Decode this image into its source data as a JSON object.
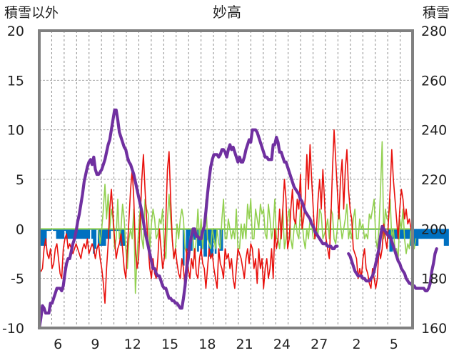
{
  "chart_data": {
    "type": "line",
    "title": "妙高",
    "left_axis_label": "積雪以外",
    "right_axis_label": "積雪",
    "ylim_left": [
      -10,
      20
    ],
    "ylim_right": [
      160,
      280
    ],
    "yticks_left": [
      -10,
      -5,
      0,
      5,
      10,
      15,
      20
    ],
    "yticks_right": [
      160,
      180,
      200,
      220,
      240,
      260,
      280
    ],
    "xticks": [
      "6",
      "9",
      "12",
      "15",
      "18",
      "21",
      "24",
      "27",
      "2",
      "5"
    ],
    "grid": "dashed",
    "colors": {
      "temperature": "#e8100c",
      "temp_change": "#92d050",
      "snow_depth": "#7030a0",
      "snowfall": "#0070c0"
    },
    "series": [
      {
        "key": "temperature",
        "axis": "left",
        "values": [
          -4,
          -4.3,
          -4,
          -2,
          -1,
          -2.5,
          -3,
          -2,
          -4,
          -3.5,
          -2,
          -1.5,
          -3,
          -4.5,
          -5,
          -2,
          -1,
          -0.5,
          -2,
          -1.5,
          -2,
          -2.5,
          -2,
          -1.5,
          -2,
          -2.5,
          -3,
          -2,
          -1.5,
          -2,
          -1,
          -2.5,
          -2,
          -1.5,
          -2,
          -3,
          -2,
          -1.5,
          -3,
          -4,
          -5.5,
          -7.5,
          -4,
          -1.5,
          2,
          4,
          1.5,
          -1,
          -3,
          -2,
          -1.5,
          -0.5,
          -2,
          -4,
          -5,
          -2,
          1,
          4,
          6,
          3,
          -2,
          -4,
          -3,
          1,
          5,
          7.5,
          4,
          1,
          -2,
          -4,
          -5,
          -3,
          -4.5,
          -5,
          -3,
          0,
          -2,
          -4,
          -3,
          1,
          6,
          7.8,
          3,
          -1,
          -3,
          -2,
          -3.5,
          -4.5,
          -5,
          -3,
          -4,
          -6,
          -2,
          -4,
          -5,
          -3,
          -4,
          -2,
          -4.5,
          -5,
          -3,
          -2,
          -3.5,
          -4,
          -6,
          -4,
          -2,
          -3,
          -2.5,
          -4,
          -5,
          -6,
          -2,
          -3.5,
          -4,
          -5,
          -2,
          -3,
          -2.5,
          -4,
          -3,
          -5,
          -6,
          -4,
          -2,
          -2.5,
          -3,
          -4,
          -5,
          -3,
          -2,
          -3.5,
          -1.5,
          -2,
          -4,
          -3,
          -5.5,
          -2,
          -4,
          -3,
          -6,
          -4,
          -3,
          -5,
          -4,
          -2,
          -5,
          0,
          -2,
          -1,
          2,
          -1,
          2,
          5,
          3,
          -2,
          -1,
          2,
          4,
          1,
          0.5,
          3,
          2,
          5.5,
          0,
          1,
          3,
          7.5,
          4,
          8.5,
          5,
          2,
          -1,
          0,
          3,
          5,
          2,
          6,
          3,
          -1,
          -2,
          -3,
          1,
          6,
          10,
          7,
          4,
          1,
          5,
          7,
          2,
          6,
          8,
          4,
          2,
          1,
          -2,
          -2.5,
          -3,
          -5,
          -4,
          -5,
          -3,
          -2,
          -4,
          -4.5,
          -5.5,
          -6,
          -4,
          -5,
          -6,
          -5,
          -2,
          -3,
          -2,
          0.5,
          -1,
          -2,
          1,
          4,
          8,
          5,
          3,
          1,
          -1,
          2,
          4,
          3,
          1,
          2,
          0.5,
          1,
          0,
          -0.5
        ]
      },
      {
        "key": "temp_change",
        "axis": "left",
        "values": [
          null,
          null,
          null,
          null,
          null,
          null,
          null,
          null,
          null,
          null,
          null,
          null,
          null,
          null,
          null,
          null,
          null,
          null,
          null,
          null,
          null,
          null,
          null,
          null,
          null,
          null,
          null,
          null,
          null,
          null,
          null,
          null,
          null,
          null,
          null,
          null,
          null,
          0,
          -1.5,
          0,
          2,
          4.5,
          1,
          3.5,
          0,
          2,
          1,
          -2,
          -1,
          3,
          -1,
          0,
          2.5,
          1,
          -2,
          -4,
          -1,
          0,
          -1,
          2,
          -6.5,
          -3,
          0,
          2,
          -1,
          -2,
          3,
          2,
          1.5,
          -2,
          0.5,
          2,
          1,
          -1,
          -0.5,
          1,
          0.5,
          2,
          -2,
          -3,
          1,
          3.5,
          1,
          -1,
          -3,
          -2,
          0.5,
          -1,
          1,
          2,
          1,
          -2,
          -2.5,
          -2.5,
          -1,
          0,
          -1,
          -3,
          -1,
          2,
          -1,
          1,
          -2,
          0.5,
          3,
          -1,
          -1.5,
          -2,
          0,
          -1,
          -2,
          0,
          -1.5,
          -2,
          1,
          3,
          -1,
          -1,
          1,
          0,
          -1,
          0,
          -1,
          2,
          -2,
          -2,
          0.5,
          -1,
          0.5,
          -1,
          2.5,
          1,
          3,
          -1,
          -1,
          2,
          1,
          0,
          2.5,
          1.5,
          2,
          -0.5,
          -1,
          2.5,
          1,
          -1,
          0,
          3,
          -1,
          -1,
          -2,
          0,
          2,
          -2,
          -1,
          1,
          2,
          -1,
          -2,
          0,
          1,
          -0.5,
          -1,
          2,
          1,
          -1,
          -2,
          0,
          -1,
          1,
          0.5,
          -1,
          -1,
          0,
          -0.5,
          2,
          1.5,
          -1,
          -0.5,
          0,
          1,
          -1,
          2,
          1.5,
          -1,
          -1.5,
          0,
          2,
          0.5,
          -1,
          0,
          1,
          2.5,
          -1,
          0,
          -1,
          1,
          2,
          -1,
          -1,
          1,
          0,
          0.5,
          -1,
          -0.5,
          -1,
          1.5,
          1,
          2,
          3,
          -1,
          -2,
          0,
          4,
          8.8,
          -1,
          2,
          1,
          1,
          3,
          -1,
          0,
          -2,
          -2,
          -3,
          1,
          0,
          2,
          -1,
          -2.5,
          -1.5,
          -2,
          0,
          -1,
          -2,
          -1
        ]
      },
      {
        "key": "snow_depth",
        "axis": "right",
        "values": [
          160,
          164,
          169,
          168,
          166,
          166,
          166,
          170,
          170,
          172,
          174,
          176,
          176,
          176,
          175,
          177,
          182,
          186,
          188,
          188,
          191,
          194,
          196,
          199,
          203,
          206,
          210,
          214,
          219,
          222,
          225,
          227,
          228,
          226,
          229,
          224,
          222,
          222,
          223,
          224,
          226,
          228,
          231,
          234,
          236,
          240,
          244,
          248,
          248,
          244,
          239,
          237,
          235,
          233,
          232,
          229,
          227,
          226,
          224,
          222,
          219,
          216,
          213,
          210,
          207,
          203,
          199,
          196,
          193,
          190,
          187,
          184,
          184,
          182,
          181,
          181,
          179,
          177,
          176,
          176,
          174,
          172,
          172,
          171,
          171,
          170,
          170,
          169,
          168,
          168,
          172,
          177,
          184,
          188,
          194,
          197,
          200,
          200,
          197,
          197,
          196,
          196,
          199,
          201,
          207,
          214,
          220,
          225,
          228,
          230,
          230,
          230,
          229,
          230,
          232,
          232,
          231,
          229,
          232,
          234,
          232,
          233,
          231,
          229,
          227,
          229,
          227,
          227,
          229,
          232,
          234,
          236,
          235,
          240,
          240,
          240,
          239,
          237,
          235,
          233,
          231,
          229,
          229,
          228,
          228,
          228,
          234,
          234,
          237,
          235,
          231,
          231,
          229,
          227,
          227,
          225,
          223,
          221,
          219,
          217,
          216,
          215,
          214,
          212,
          211,
          209,
          207,
          206,
          205,
          204,
          202,
          201,
          199,
          198,
          197,
          196,
          195,
          194,
          194,
          194,
          193,
          193,
          193,
          192,
          192,
          193,
          193,
          null,
          null,
          null,
          null,
          null,
          null,
          190,
          189,
          187,
          185,
          183,
          182,
          181,
          181,
          181,
          180,
          180,
          179,
          179,
          179,
          180,
          181,
          183,
          186,
          189,
          192,
          197,
          201,
          200,
          199,
          198,
          197,
          197,
          195,
          193,
          191,
          189,
          187,
          186,
          184,
          183,
          182,
          180,
          179,
          178,
          178,
          177,
          177,
          176,
          176,
          176,
          176,
          176,
          176,
          175,
          175,
          176,
          178,
          183,
          186,
          190,
          192
        ]
      },
      {
        "key": "snowfall",
        "axis": "left",
        "values": [
          -1.7,
          -1.7,
          -1.7,
          -1.7,
          -1.7,
          -0.2,
          -0.2,
          -0.2,
          -0.1,
          -0.2,
          -0.2,
          -1.0,
          -1.0,
          -1.0,
          -1.0,
          -1.0,
          -0.2,
          -1.0,
          -1.0,
          -1.0,
          -1.0,
          -1.0,
          -1.0,
          -1.0,
          -1.0,
          -1.0,
          -1.0,
          -1.0,
          -1.0,
          -1.0,
          -1.0,
          -1.0,
          -0.1,
          -1.0,
          -2.5,
          -2.0,
          -0.1,
          -1.7,
          -1.7,
          -1.7,
          -1.7,
          -1.7,
          -1.0,
          -1.0,
          -1.0,
          -0.2,
          -0.2,
          -0.2,
          -0.2,
          -0.2,
          -0.2,
          -1.7,
          -1.7,
          -1.7,
          -0.1,
          -0.1,
          -0.1,
          -0.1,
          -0.1,
          -0.1,
          -0.1,
          -0.1,
          -0.1,
          -0.1,
          -0.1,
          -0.1,
          -0.1,
          -0.1,
          -0.1,
          -0.1,
          -0.1,
          -0.1,
          -0.1,
          -0.1,
          -0.1,
          -0.1,
          -0.1,
          -0.1,
          -0.1,
          -0.1,
          -0.1,
          -0.1,
          -0.1,
          -0.1,
          -0.1,
          -0.1,
          -0.1,
          -0.1,
          -0.1,
          -0.1,
          -3.7,
          -0.1,
          -2.2,
          -2.2,
          -2.2,
          -2.2,
          -1.1,
          -1.1,
          -0.2,
          -2.3,
          -1.7,
          -2.4,
          -1.1,
          -2.8,
          -2.8,
          -1.1,
          -2.8,
          -2.8,
          -2.8,
          -1.1,
          -2.5,
          -0.1,
          -0.1,
          -2.2,
          -2.2,
          -0.1,
          -0.1,
          -0.1,
          -0.1,
          -0.1,
          -0.1,
          -0.1,
          -0.1,
          -0.1,
          -0.1,
          -0.1,
          -0.1,
          -0.1,
          -0.1,
          -0.1,
          -0.1,
          -0.1,
          -0.1,
          -0.1,
          -0.1,
          -0.1,
          -0.1,
          -0.1,
          -0.1,
          -0.1,
          -0.1,
          -0.1,
          -0.1,
          -0.1,
          -0.1,
          -0.1,
          -0.1,
          -0.1,
          -0.1,
          -0.1,
          -0.1,
          -0.1,
          -0.1,
          -0.1,
          -0.1,
          -0.1,
          -0.1,
          -0.1,
          -0.1,
          -0.1,
          -0.1,
          -0.1,
          -0.1,
          -0.1,
          -0.1,
          -0.1,
          -0.1,
          -0.1,
          -0.1,
          -0.1,
          -0.1,
          -0.1,
          -0.1,
          -0.1,
          -0.1,
          -0.1,
          -0.1,
          -0.1,
          -0.1,
          -0.1,
          -0.1,
          -0.1,
          -0.1,
          -0.1,
          -0.1,
          -0.1,
          -0.1,
          -0.1,
          -0.1,
          -0.1,
          -0.1,
          -0.1,
          -0.1,
          -0.1,
          -0.1,
          -0.1,
          -0.1,
          -0.1,
          -0.1,
          -0.1,
          -0.1,
          -0.1,
          -0.1,
          -0.1,
          -0.1,
          -0.1,
          -0.1,
          -0.1,
          -0.1,
          -0.1,
          -0.1,
          -0.1,
          -0.1,
          -0.1,
          -0.1,
          -0.1,
          -0.1,
          -0.1,
          -1.0,
          -2.3,
          -2.3,
          -1.0,
          -1.0,
          -1.0,
          -1.0,
          -1.0,
          -1.0,
          -1.0,
          -1.0,
          -1.0,
          -1.0,
          -1.0,
          -1.7,
          -1.7,
          -1.7,
          -1.7,
          -1.7,
          -1.0,
          -1.0,
          -1.0,
          -1.0,
          -1.0,
          -1.0,
          -1.0,
          -1.0,
          -1.0,
          -1.0,
          -1.0,
          -1.0,
          -1.0,
          -1.0,
          -1.0,
          -1.0,
          -1.7,
          -1.7,
          -1.7
        ]
      }
    ]
  }
}
